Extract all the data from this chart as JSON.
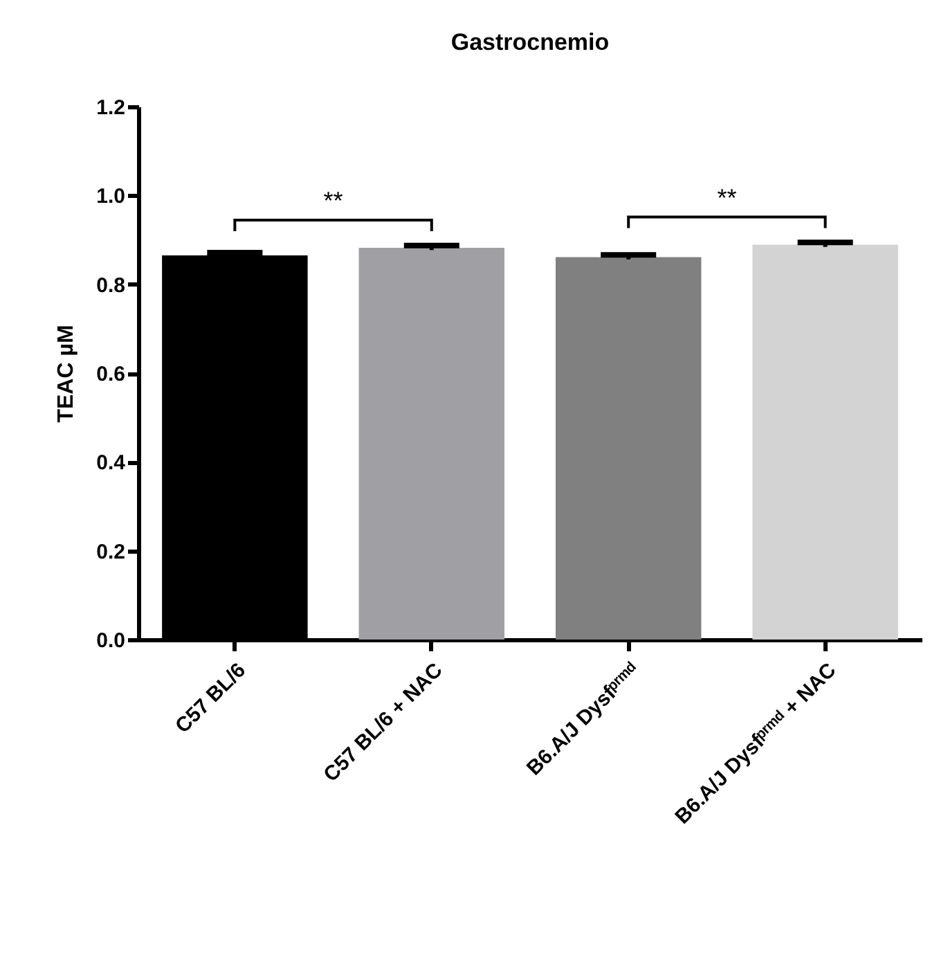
{
  "chart_data": {
    "type": "bar",
    "title": "Gastrocnemio",
    "ylabel": "TEAC µM",
    "categories": [
      "C57 BL/6",
      "C57 BL/6 + NAC",
      "B6.A/J Dysfᵖʳᵐᵈ",
      "B6.A/J Dysfᵖʳᵐᵈ + NAC"
    ],
    "values": [
      0.865,
      0.882,
      0.861,
      0.889
    ],
    "errors": [
      0.006,
      0.005,
      0.005,
      0.005
    ],
    "colors": [
      "#000000",
      "#a0a0a4",
      "#808080",
      "#d3d3d3"
    ],
    "ylim": [
      0,
      1.2
    ],
    "yticks": [
      {
        "value": 0,
        "label": "0.0"
      },
      {
        "value": 0.2,
        "label": "0.2"
      },
      {
        "value": 0.4,
        "label": "0.4"
      },
      {
        "value": 0.6,
        "label": "0.6"
      },
      {
        "value": 0.8,
        "label": "0.8"
      },
      {
        "value": 1,
        "label": "1.0"
      },
      {
        "value": 1.2,
        "label": "1.2"
      }
    ],
    "annotations": [
      "**",
      "**"
    ],
    "grid": false
  }
}
